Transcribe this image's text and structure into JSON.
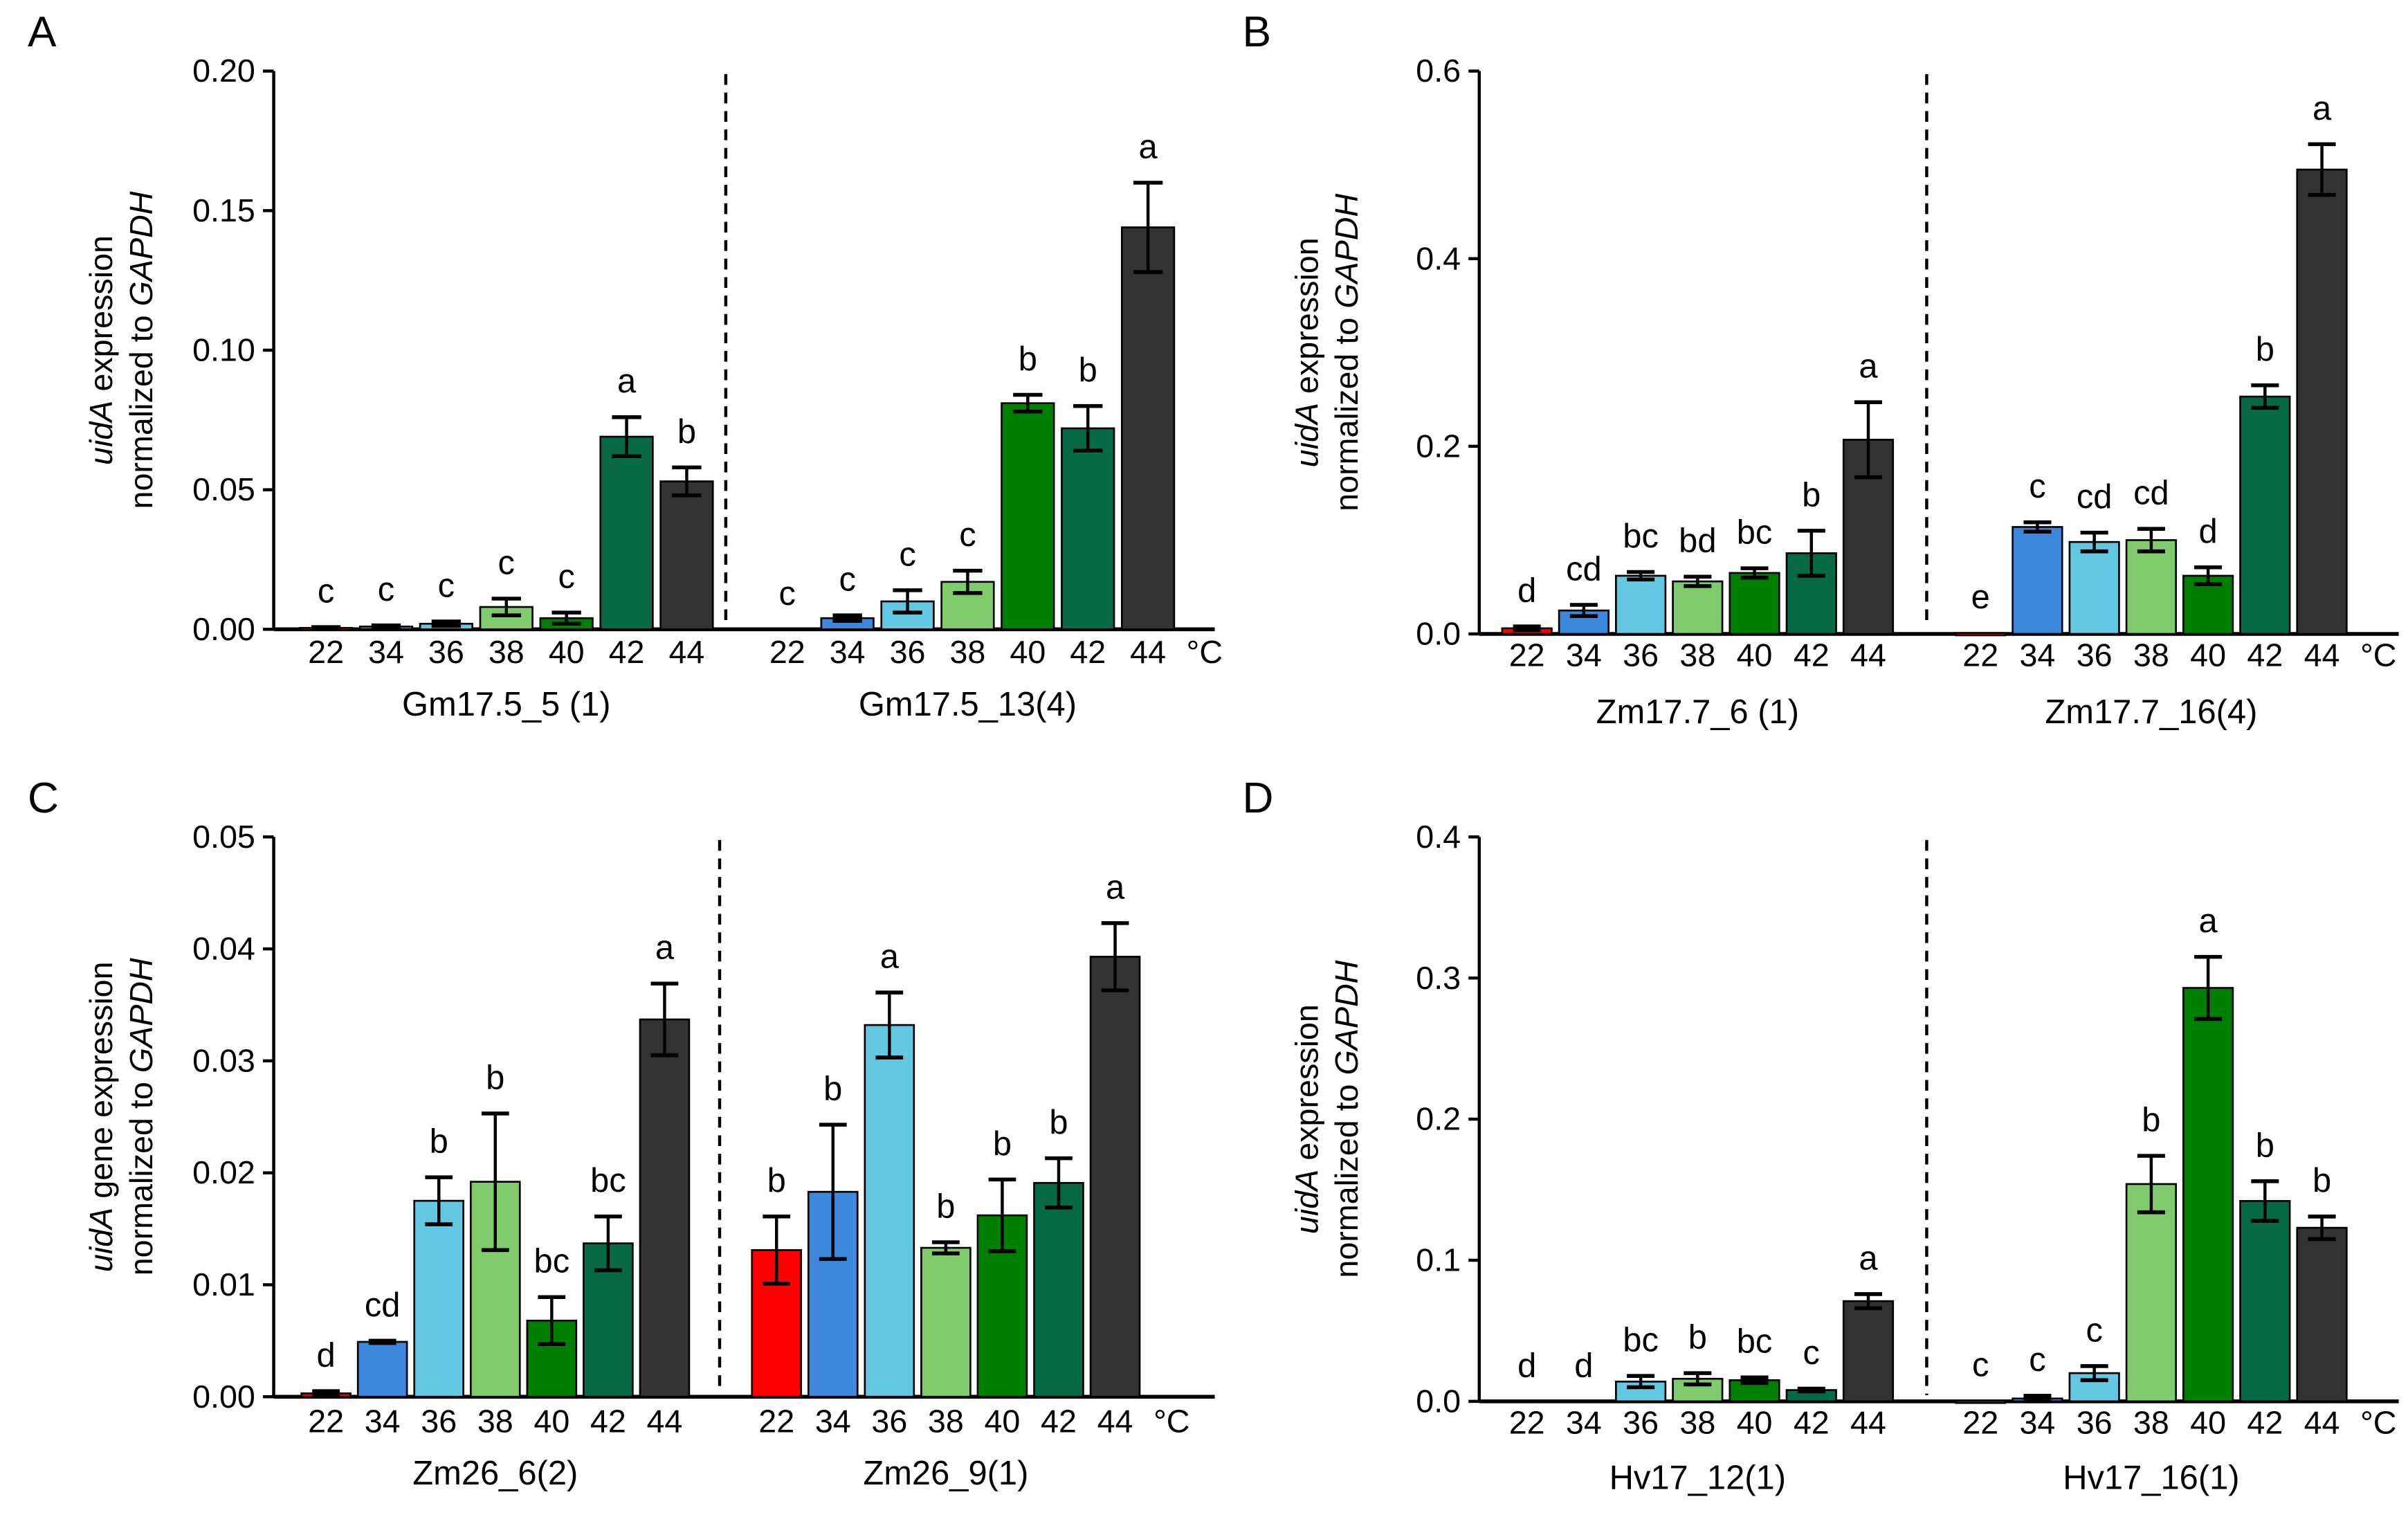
{
  "colors": {
    "22": "#ff0000",
    "34": "#3d87dd",
    "36": "#65c8e3",
    "38": "#80cc6c",
    "40": "#007f00",
    "42": "#066a45",
    "44": "#333333"
  },
  "chart_data": [
    {
      "type": "bar",
      "panel": "A",
      "ylim": [
        0,
        0.2
      ],
      "yticks": [
        0,
        0.05,
        0.1,
        0.15,
        0.2
      ],
      "ytick_labels": [
        "0.00",
        "0.05",
        "0.10",
        "0.15",
        "0.20"
      ],
      "ylabel": {
        "l1_italic": "uidA",
        "l1_rest": " expression",
        "l2_rest": "normalized to ",
        "l2_italic": "GAPDH"
      },
      "unit": "°C",
      "groups": [
        {
          "name": "Gm17.5_5 (1)",
          "categories": [
            "22",
            "34",
            "36",
            "38",
            "40",
            "42",
            "44"
          ],
          "values": [
            0.0005,
            0.001,
            0.002,
            0.008,
            0.004,
            0.069,
            0.053
          ],
          "errors": [
            0.0003,
            0.0004,
            0.0008,
            0.003,
            0.002,
            0.007,
            0.005
          ],
          "letters": [
            "c",
            "c",
            "c",
            "c",
            "c",
            "a",
            "b"
          ]
        },
        {
          "name": "Gm17.5_13(4)",
          "categories": [
            "22",
            "34",
            "36",
            "38",
            "40",
            "42",
            "44"
          ],
          "values": [
            0,
            0.004,
            0.01,
            0.017,
            0.081,
            0.072,
            0.144
          ],
          "errors": [
            0,
            0.001,
            0.004,
            0.004,
            0.003,
            0.008,
            0.016
          ],
          "letters": [
            "c",
            "c",
            "c",
            "c",
            "b",
            "b",
            "a"
          ]
        }
      ]
    },
    {
      "type": "bar",
      "panel": "B",
      "ylim": [
        0,
        0.6
      ],
      "yticks": [
        0,
        0.2,
        0.4,
        0.6
      ],
      "ytick_labels": [
        "0.0",
        "0.2",
        "0.4",
        "0.6"
      ],
      "ylabel": {
        "l1_italic": "uidA",
        "l1_rest": " expression",
        "l2_rest": "normalized to ",
        "l2_italic": "GAPDH"
      },
      "unit": "°C",
      "groups": [
        {
          "name": "Zm17.7_6 (1)",
          "categories": [
            "22",
            "34",
            "36",
            "38",
            "40",
            "42",
            "44"
          ],
          "values": [
            0.006,
            0.025,
            0.062,
            0.056,
            0.065,
            0.086,
            0.207
          ],
          "errors": [
            0.002,
            0.006,
            0.004,
            0.005,
            0.005,
            0.024,
            0.04
          ],
          "letters": [
            "d",
            "cd",
            "bc",
            "bd",
            "bc",
            "b",
            "a"
          ]
        },
        {
          "name": "Zm17.7_16(4)",
          "categories": [
            "22",
            "34",
            "36",
            "38",
            "40",
            "42",
            "44"
          ],
          "values": [
            0.001,
            0.114,
            0.098,
            0.1,
            0.062,
            0.253,
            0.495
          ],
          "errors": [
            0,
            0.005,
            0.01,
            0.012,
            0.009,
            0.012,
            0.027
          ],
          "letters": [
            "e",
            "c",
            "cd",
            "cd",
            "d",
            "b",
            "a"
          ]
        }
      ]
    },
    {
      "type": "bar",
      "panel": "C",
      "ylim": [
        0,
        0.05
      ],
      "yticks": [
        0,
        0.01,
        0.02,
        0.03,
        0.04,
        0.05
      ],
      "ytick_labels": [
        "0.00",
        "0.01",
        "0.02",
        "0.03",
        "0.04",
        "0.05"
      ],
      "ylabel": {
        "l1_italic": "uidA",
        "l1_rest": " gene expression",
        "l2_rest": "normalized to ",
        "l2_italic": "GAPDH"
      },
      "unit": "°C",
      "groups": [
        {
          "name": "Zm26_6(2)",
          "categories": [
            "22",
            "34",
            "36",
            "38",
            "40",
            "42",
            "44"
          ],
          "values": [
            0.0003,
            0.0049,
            0.0175,
            0.0192,
            0.0068,
            0.0137,
            0.0337
          ],
          "errors": [
            0.0002,
            0.0001,
            0.0021,
            0.0061,
            0.0021,
            0.0024,
            0.0032
          ],
          "letters": [
            "d",
            "cd",
            "b",
            "b",
            "bc",
            "bc",
            "a"
          ]
        },
        {
          "name": "Zm26_9(1)",
          "categories": [
            "22",
            "34",
            "36",
            "38",
            "40",
            "42",
            "44"
          ],
          "values": [
            0.0131,
            0.0183,
            0.0332,
            0.0133,
            0.0162,
            0.0191,
            0.0393
          ],
          "errors": [
            0.003,
            0.006,
            0.0029,
            0.0005,
            0.0032,
            0.0022,
            0.003
          ],
          "letters": [
            "b",
            "b",
            "a",
            "b",
            "b",
            "b",
            "a"
          ]
        }
      ]
    },
    {
      "type": "bar",
      "panel": "D",
      "ylim": [
        0,
        0.4
      ],
      "yticks": [
        0,
        0.1,
        0.2,
        0.3,
        0.4
      ],
      "ytick_labels": [
        "0.0",
        "0.1",
        "0.2",
        "0.3",
        "0.4"
      ],
      "ylabel": {
        "l1_italic": "uidA",
        "l1_rest": " expression",
        "l2_rest": "normalized to ",
        "l2_italic": "GAPDH"
      },
      "unit": "°C",
      "groups": [
        {
          "name": "Hv17_12(1)",
          "categories": [
            "22",
            "34",
            "36",
            "38",
            "40",
            "42",
            "44"
          ],
          "values": [
            0,
            0,
            0.014,
            0.016,
            0.015,
            0.008,
            0.071
          ],
          "errors": [
            0,
            0,
            0.004,
            0.004,
            0.002,
            0.001,
            0.005
          ],
          "letters": [
            "d",
            "d",
            "bc",
            "b",
            "bc",
            "c",
            "a"
          ]
        },
        {
          "name": "Hv17_16(1)",
          "categories": [
            "22",
            "34",
            "36",
            "38",
            "40",
            "42",
            "44"
          ],
          "values": [
            0.0005,
            0.002,
            0.02,
            0.154,
            0.293,
            0.142,
            0.123
          ],
          "errors": [
            0,
            0.002,
            0.005,
            0.02,
            0.022,
            0.014,
            0.008
          ],
          "letters": [
            "c",
            "c",
            "c",
            "b",
            "a",
            "b",
            "b"
          ]
        }
      ]
    }
  ]
}
